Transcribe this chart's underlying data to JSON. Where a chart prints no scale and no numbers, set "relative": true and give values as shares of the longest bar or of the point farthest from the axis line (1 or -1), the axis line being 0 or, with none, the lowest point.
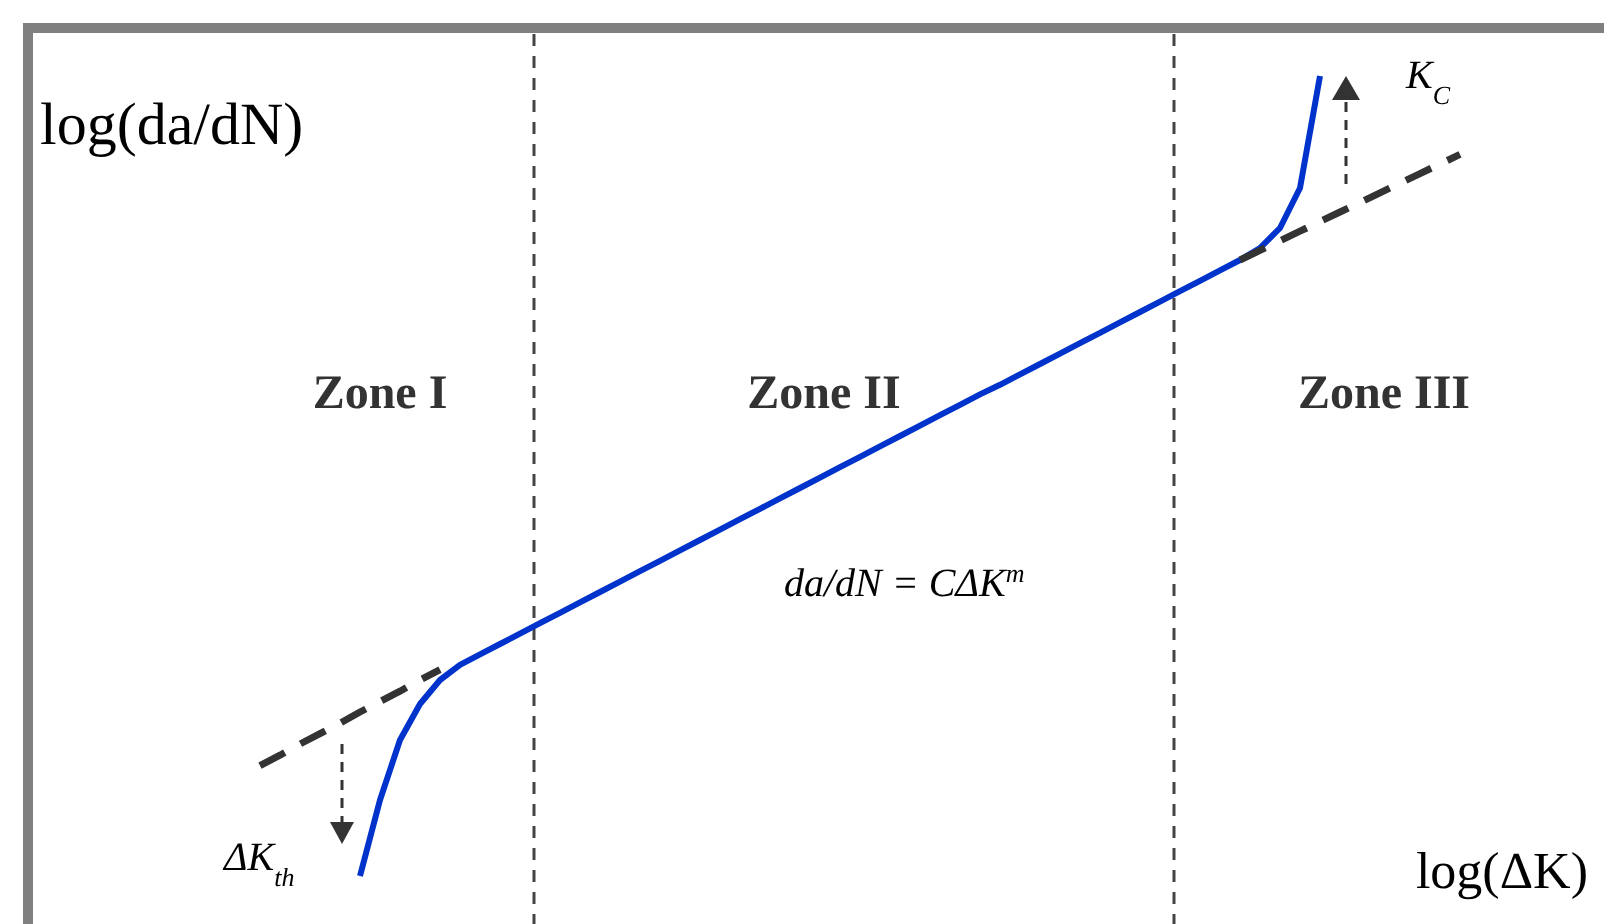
{
  "chart_data": {
    "type": "line",
    "relative": true,
    "categories": [
      null,
      null,
      null,
      null,
      null,
      null,
      null,
      null,
      null,
      null,
      null,
      null,
      null,
      null,
      null,
      null,
      null,
      null,
      null,
      null,
      null,
      null,
      null,
      null,
      null,
      null,
      null,
      null,
      null,
      null,
      null,
      null,
      null,
      null,
      null,
      null,
      null,
      null,
      null,
      null,
      null,
      null,
      null,
      null,
      null,
      null,
      null,
      null,
      null,
      null,
      null,
      null,
      null,
      null,
      null,
      null,
      null,
      null,
      null,
      null,
      null
    ],
    "xlabel": "log(ΔK)",
    "ylabel": "log(da/dN)",
    "series": [
      {
        "color": "#0033cc",
        "line_style": "solid",
        "values": [
          null,
          null,
          null,
          null,
          null,
          0,
          0.095,
          0.17,
          0.215,
          0.245,
          0.264,
          0.277,
          0.29,
          0.303,
          0.316,
          0.329,
          0.342,
          0.355,
          0.368,
          0.381,
          0.394,
          0.407,
          0.42,
          0.433,
          0.446,
          0.459,
          0.472,
          0.485,
          0.498,
          0.511,
          0.524,
          0.537,
          0.55,
          0.563,
          0.576,
          0.589,
          0.602,
          0.614,
          0.627,
          0.64,
          0.653,
          0.666,
          0.679,
          0.692,
          0.705,
          0.718,
          0.731,
          0.744,
          0.757,
          0.77,
          0.785,
          0.81,
          0.86,
          1,
          null,
          null,
          null,
          null,
          null,
          null,
          null
        ]
      },
      {
        "color": "#333333",
        "line_style": "dashed",
        "values": [
          0.138,
          0.151,
          0.165,
          0.178,
          0.191,
          0.205,
          0.218,
          0.231,
          0.245,
          0.258,
          null,
          null,
          null,
          null,
          null,
          null,
          null,
          null,
          null,
          null,
          null,
          null,
          null,
          null,
          null,
          null,
          null,
          null,
          null,
          null,
          null,
          null,
          null,
          null,
          null,
          null,
          null,
          null,
          null,
          null,
          null,
          null,
          null,
          null,
          null,
          null,
          null,
          null,
          null,
          0.77,
          0.782,
          0.794,
          0.806,
          0.818,
          0.83,
          0.842,
          0.854,
          0.866,
          0.878,
          0.89,
          0.902
        ]
      }
    ],
    "annotations": [
      "Zone I",
      "Zone II",
      "Zone III",
      "da/dN = CΔK$^{m}$",
      "ΔK$_{th}$",
      "K$_{C}$"
    ]
  }
}
